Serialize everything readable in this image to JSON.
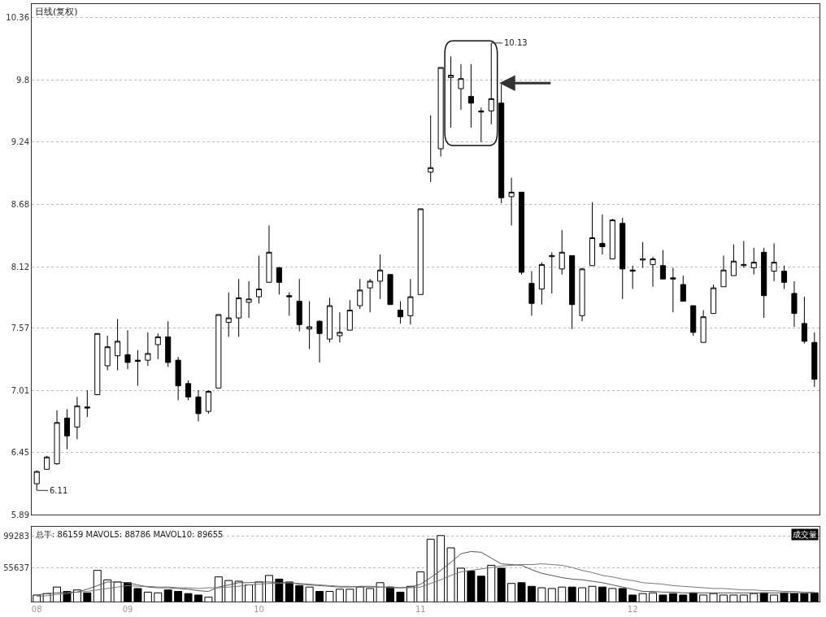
{
  "chart_data": [
    {
      "type": "candlestick",
      "title": "日线(复权)",
      "categories": [
        "08",
        null,
        null,
        null,
        null,
        null,
        null,
        null,
        null,
        "09",
        null,
        null,
        null,
        null,
        null,
        null,
        null,
        null,
        null,
        null,
        null,
        null,
        "10",
        null,
        null,
        null,
        null,
        null,
        null,
        null,
        null,
        null,
        null,
        null,
        null,
        null,
        null,
        null,
        "11",
        null,
        null,
        null,
        null,
        null,
        null,
        null,
        null,
        null,
        null,
        null,
        null,
        null,
        null,
        null,
        null,
        null,
        null,
        null,
        null,
        "12",
        null,
        null,
        null,
        null,
        null,
        null,
        null,
        null,
        null,
        null,
        null,
        null,
        null,
        null,
        null,
        null,
        null,
        null
      ],
      "ohlc": [
        [
          6.17,
          6.29,
          6.11,
          6.28
        ],
        [
          6.3,
          6.42,
          6.3,
          6.41
        ],
        [
          6.35,
          6.83,
          6.34,
          6.72
        ],
        [
          6.76,
          6.84,
          6.48,
          6.6
        ],
        [
          6.68,
          6.95,
          6.57,
          6.87
        ],
        [
          6.86,
          7.01,
          6.77,
          6.85
        ],
        [
          6.97,
          7.52,
          6.97,
          7.52
        ],
        [
          7.23,
          7.5,
          7.19,
          7.4
        ],
        [
          7.32,
          7.65,
          7.19,
          7.45
        ],
        [
          7.33,
          7.55,
          7.2,
          7.26
        ],
        [
          7.28,
          7.37,
          7.05,
          7.27
        ],
        [
          7.28,
          7.53,
          7.23,
          7.34
        ],
        [
          7.42,
          7.52,
          7.29,
          7.49
        ],
        [
          7.49,
          7.63,
          7.22,
          7.26
        ],
        [
          7.28,
          7.31,
          6.92,
          7.05
        ],
        [
          7.07,
          7.1,
          6.92,
          6.95
        ],
        [
          6.95,
          7.01,
          6.73,
          6.8
        ],
        [
          6.82,
          7.01,
          6.8,
          7.0
        ],
        [
          7.03,
          7.69,
          7.03,
          7.69
        ],
        [
          7.62,
          7.89,
          7.49,
          7.66
        ],
        [
          7.66,
          8.01,
          7.49,
          7.84
        ],
        [
          7.8,
          7.99,
          7.66,
          7.83
        ],
        [
          7.85,
          8.22,
          7.79,
          7.92
        ],
        [
          7.98,
          8.49,
          7.98,
          8.25
        ],
        [
          8.11,
          8.12,
          7.87,
          7.98
        ],
        [
          7.86,
          7.89,
          7.68,
          7.85
        ],
        [
          7.81,
          8.01,
          7.54,
          7.6
        ],
        [
          7.56,
          7.81,
          7.38,
          7.58
        ],
        [
          7.63,
          7.64,
          7.26,
          7.52
        ],
        [
          7.47,
          7.84,
          7.44,
          7.77
        ],
        [
          7.5,
          7.71,
          7.44,
          7.53
        ],
        [
          7.55,
          7.82,
          7.55,
          7.73
        ],
        [
          7.77,
          8.01,
          7.74,
          7.91
        ],
        [
          7.93,
          8.01,
          7.71,
          7.99
        ],
        [
          7.99,
          8.23,
          7.83,
          8.09
        ],
        [
          8.05,
          8.05,
          7.78,
          7.78
        ],
        [
          7.73,
          7.81,
          7.61,
          7.67
        ],
        [
          7.68,
          8.01,
          7.6,
          7.85
        ],
        [
          7.87,
          8.64,
          7.87,
          8.64
        ],
        [
          8.97,
          9.48,
          8.88,
          9.01
        ],
        [
          9.18,
          9.91,
          9.11,
          9.91
        ],
        [
          9.82,
          10.01,
          9.37,
          9.84
        ],
        [
          9.72,
          9.94,
          9.53,
          9.81
        ],
        [
          9.65,
          9.94,
          9.37,
          9.59
        ],
        [
          9.52,
          9.55,
          9.24,
          9.51
        ],
        [
          9.52,
          10.13,
          9.4,
          9.63
        ],
        [
          9.59,
          9.76,
          8.69,
          8.74
        ],
        [
          8.75,
          8.92,
          8.49,
          8.79
        ],
        [
          8.79,
          8.79,
          8.05,
          8.07
        ],
        [
          7.97,
          8.08,
          7.68,
          7.79
        ],
        [
          7.92,
          8.16,
          7.78,
          8.14
        ],
        [
          8.21,
          8.25,
          7.88,
          8.22
        ],
        [
          8.1,
          8.45,
          8.05,
          8.25
        ],
        [
          8.22,
          8.22,
          7.56,
          7.78
        ],
        [
          7.68,
          8.11,
          7.63,
          8.1
        ],
        [
          8.13,
          8.7,
          8.13,
          8.38
        ],
        [
          8.33,
          8.59,
          8.23,
          8.3
        ],
        [
          8.19,
          8.55,
          8.19,
          8.54
        ],
        [
          8.51,
          8.56,
          7.83,
          8.1
        ],
        [
          8.09,
          8.13,
          7.92,
          8.08
        ],
        [
          8.18,
          8.34,
          8.11,
          8.19
        ],
        [
          8.14,
          8.21,
          7.94,
          8.19
        ],
        [
          8.13,
          8.27,
          8.01,
          8.01
        ],
        [
          8.02,
          8.11,
          7.71,
          8.01
        ],
        [
          7.96,
          8.04,
          7.81,
          7.81
        ],
        [
          7.77,
          7.77,
          7.5,
          7.53
        ],
        [
          7.44,
          7.73,
          7.44,
          7.67
        ],
        [
          7.7,
          7.96,
          7.7,
          7.93
        ],
        [
          7.94,
          8.22,
          7.94,
          8.09
        ],
        [
          8.04,
          8.32,
          8.04,
          8.17
        ],
        [
          8.13,
          8.35,
          8.11,
          8.14
        ],
        [
          8.11,
          8.29,
          8.05,
          8.16
        ],
        [
          8.25,
          8.29,
          7.66,
          7.86
        ],
        [
          8.08,
          8.33,
          7.99,
          8.16
        ],
        [
          8.08,
          8.13,
          7.92,
          7.98
        ],
        [
          7.88,
          7.99,
          7.58,
          7.7
        ],
        [
          7.61,
          7.85,
          7.43,
          7.45
        ],
        [
          7.44,
          7.53,
          7.04,
          7.11
        ]
      ],
      "ylim": [
        5.89,
        10.48
      ],
      "yticks": [
        5.89,
        6.45,
        7.01,
        7.57,
        8.12,
        8.68,
        9.24,
        9.8,
        10.36
      ],
      "grid": "y",
      "tick_labels": "y",
      "annotations": [
        "10.13",
        "6.11"
      ]
    },
    {
      "type": "bar",
      "categories": [
        "08",
        null,
        null,
        null,
        null,
        null,
        null,
        null,
        null,
        "09",
        null,
        null,
        null,
        null,
        null,
        null,
        null,
        null,
        null,
        null,
        null,
        null,
        "10",
        null,
        null,
        null,
        null,
        null,
        null,
        null,
        null,
        null,
        null,
        null,
        null,
        null,
        null,
        null,
        "11",
        null,
        null,
        null,
        null,
        null,
        null,
        null,
        null,
        null,
        null,
        null,
        null,
        null,
        null,
        null,
        null,
        null,
        null,
        null,
        null,
        "12",
        null,
        null,
        null,
        null,
        null,
        null,
        null,
        null,
        null,
        null,
        null,
        null,
        null,
        null,
        null,
        null,
        null,
        null
      ],
      "series": [
        {
          "type": "bar",
          "values": [
            18000,
            20000,
            29000,
            23000,
            25000,
            21000,
            52000,
            39000,
            36000,
            35000,
            27000,
            22000,
            21000,
            25000,
            23000,
            20000,
            18000,
            15000,
            43000,
            38000,
            37000,
            32000,
            36000,
            45000,
            40000,
            36000,
            31000,
            29000,
            23000,
            23000,
            26000,
            26000,
            29000,
            27000,
            35000,
            29000,
            22000,
            30000,
            50000,
            95000,
            100000,
            83000,
            55000,
            51000,
            44000,
            59000,
            55000,
            34000,
            35000,
            30000,
            28000,
            27000,
            29000,
            29000,
            28000,
            30000,
            29000,
            27000,
            27000,
            18000,
            20000,
            21000,
            18000,
            20000,
            18000,
            21000,
            18000,
            20000,
            18000,
            18000,
            18000,
            20000,
            21000,
            18000,
            21000,
            20000,
            20000,
            21000
          ],
          "colors": [
            "#ffffff",
            "#ffffff",
            "#ffffff",
            "#000000",
            "#ffffff",
            "#000000",
            "#ffffff",
            "#ffffff",
            "#ffffff",
            "#000000",
            "#000000",
            "#ffffff",
            "#ffffff",
            "#000000",
            "#000000",
            "#000000",
            "#000000",
            "#ffffff",
            "#ffffff",
            "#ffffff",
            "#ffffff",
            "#ffffff",
            "#ffffff",
            "#ffffff",
            "#000000",
            "#000000",
            "#000000",
            "#ffffff",
            "#000000",
            "#ffffff",
            "#ffffff",
            "#ffffff",
            "#ffffff",
            "#ffffff",
            "#ffffff",
            "#000000",
            "#000000",
            "#ffffff",
            "#ffffff",
            "#ffffff",
            "#ffffff",
            "#ffffff",
            "#ffffff",
            "#000000",
            "#000000",
            "#ffffff",
            "#000000",
            "#ffffff",
            "#000000",
            "#000000",
            "#ffffff",
            "#ffffff",
            "#ffffff",
            "#000000",
            "#ffffff",
            "#ffffff",
            "#000000",
            "#ffffff",
            "#000000",
            "#000000",
            "#ffffff",
            "#ffffff",
            "#000000",
            "#000000",
            "#000000",
            "#000000",
            "#ffffff",
            "#ffffff",
            "#ffffff",
            "#ffffff",
            "#ffffff",
            "#ffffff",
            "#000000",
            "#ffffff",
            "#000000",
            "#000000",
            "#000000",
            "#000000"
          ]
        },
        {
          "type": "line",
          "color": "#555555",
          "values": [
            18000,
            20000,
            21000,
            22000,
            22000,
            26000,
            31000,
            36000,
            36000,
            35000,
            32000,
            29000,
            28000,
            28000,
            27000,
            26000,
            24000,
            23000,
            29000,
            32000,
            35000,
            35000,
            36000,
            36000,
            35000,
            35000,
            33000,
            32000,
            31000,
            30000,
            29000,
            29000,
            30000,
            30000,
            29000,
            29000,
            28000,
            29000,
            33000,
            42000,
            52000,
            63000,
            75000,
            78000,
            77000,
            69000,
            61000,
            60000,
            59000,
            53000,
            48000,
            45000,
            42000,
            40000,
            39000,
            37000,
            35000,
            32000,
            29000,
            26000,
            23000,
            23000,
            22000,
            22000,
            21000,
            21000,
            21000,
            21000,
            21000,
            21000,
            21000,
            21000,
            21000,
            21000,
            21000,
            21000,
            21000,
            21000
          ]
        },
        {
          "type": "line",
          "color": "#777777",
          "values": [
            16000,
            17000,
            19000,
            20000,
            22000,
            23000,
            25000,
            27000,
            29000,
            31000,
            30000,
            30000,
            29000,
            29000,
            28000,
            28000,
            27000,
            28000,
            28000,
            29000,
            30000,
            32000,
            33000,
            34000,
            34000,
            35000,
            34000,
            33000,
            32000,
            31000,
            30000,
            30000,
            29000,
            29000,
            29000,
            28000,
            28000,
            28000,
            29000,
            34000,
            39000,
            45000,
            50000,
            52000,
            54000,
            56000,
            58000,
            59000,
            60000,
            60000,
            61000,
            60000,
            59000,
            56000,
            52000,
            49000,
            45000,
            43000,
            40000,
            38000,
            35000,
            34000,
            33000,
            31000,
            30000,
            29000,
            28000,
            27000,
            27000,
            26000,
            25000,
            25000,
            24000,
            24000,
            23000,
            23000,
            22000,
            22000
          ]
        }
      ],
      "ylim": [
        9000,
        112000
      ],
      "yticks": [
        55637,
        99283
      ],
      "grid": "y",
      "annotations": [
        "总手: 86159 MAVOL5: 88786 MAVOL10: 89655",
        "成交量"
      ]
    }
  ]
}
